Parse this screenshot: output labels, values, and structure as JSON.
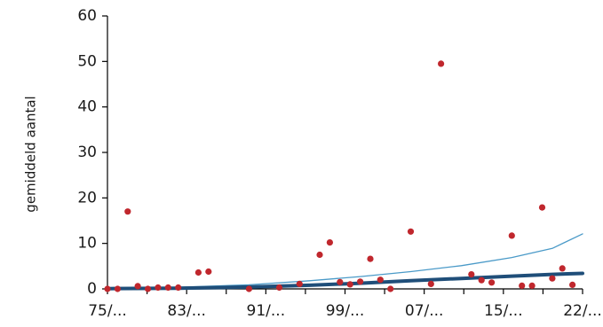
{
  "chart_data": {
    "type": "scatter",
    "title": "",
    "xlabel": "",
    "ylabel": "gemiddeld aantal",
    "x_tick_labels": [
      "75/...",
      "83/...",
      "91/...",
      "99/...",
      "07/...",
      "15/...",
      "22/..."
    ],
    "xlim": [
      1975,
      2022
    ],
    "ylim": [
      0,
      60
    ],
    "y_ticks": [
      0,
      10,
      20,
      30,
      40,
      50,
      60
    ],
    "grid": false,
    "legend": "none",
    "colors": {
      "points": "#c0272d",
      "trend": "#1f4e79",
      "upper_band": "#4a9ac8",
      "axis": "#000000"
    },
    "series": [
      {
        "type": "scatter",
        "points": [
          [
            1975,
            0
          ],
          [
            1976,
            0
          ],
          [
            1977,
            17
          ],
          [
            1978,
            0.6
          ],
          [
            1979,
            0
          ],
          [
            1980,
            0.3
          ],
          [
            1981,
            0.3
          ],
          [
            1982,
            0.3
          ],
          [
            1984,
            3.6
          ],
          [
            1985,
            3.8
          ],
          [
            1989,
            0
          ],
          [
            1992,
            0.3
          ],
          [
            1994,
            1.1
          ],
          [
            1996,
            7.5
          ],
          [
            1997,
            10.2
          ],
          [
            1998,
            1.5
          ],
          [
            1999,
            1.0
          ],
          [
            2000,
            1.6
          ],
          [
            2001,
            6.6
          ],
          [
            2002,
            2.0
          ],
          [
            2003,
            0
          ],
          [
            2005,
            12.6
          ],
          [
            2007,
            1.1
          ],
          [
            2008,
            49.5
          ],
          [
            2011,
            3.2
          ],
          [
            2012,
            1.9
          ],
          [
            2013,
            1.4
          ],
          [
            2015,
            11.7
          ],
          [
            2016,
            0.7
          ],
          [
            2017,
            0.7
          ],
          [
            2018,
            17.9
          ],
          [
            2019,
            2.3
          ],
          [
            2020,
            4.5
          ],
          [
            2021,
            0.9
          ]
        ]
      },
      {
        "type": "line",
        "points": [
          [
            1975,
            0.05
          ],
          [
            1982,
            0.15
          ],
          [
            1989,
            0.4
          ],
          [
            1995,
            0.8
          ],
          [
            2000,
            1.25
          ],
          [
            2005,
            1.8
          ],
          [
            2010,
            2.3
          ],
          [
            2015,
            2.8
          ],
          [
            2019,
            3.2
          ],
          [
            2022,
            3.4
          ]
        ]
      },
      {
        "type": "line",
        "points": [
          [
            1975,
            0.1
          ],
          [
            1982,
            0.35
          ],
          [
            1989,
            0.9
          ],
          [
            1995,
            1.8
          ],
          [
            2000,
            2.7
          ],
          [
            2005,
            3.8
          ],
          [
            2010,
            5.1
          ],
          [
            2015,
            6.9
          ],
          [
            2019,
            8.9
          ],
          [
            2022,
            12.1
          ]
        ]
      }
    ]
  }
}
